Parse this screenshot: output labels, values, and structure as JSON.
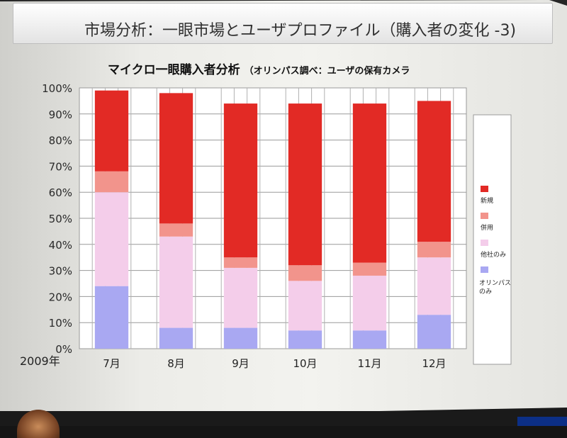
{
  "slide": {
    "title": "市場分析：一眼市場とユーザプロファイル（購入者の変化 -3)"
  },
  "chart_data": {
    "type": "bar",
    "stacked": true,
    "title": "マイクロ一眼購入者分析",
    "subtitle": "（オリンパス調べ：ユーザの保有カメラ",
    "year_label": "2009年",
    "categories": [
      "7月",
      "8月",
      "9月",
      "10月",
      "11月",
      "12月"
    ],
    "yticks": [
      "0%",
      "10%",
      "20%",
      "30%",
      "40%",
      "50%",
      "60%",
      "70%",
      "80%",
      "90%",
      "100%"
    ],
    "ylim": [
      0,
      100
    ],
    "grid": true,
    "legend_position": "right",
    "series": [
      {
        "name": "オリンパスのみ",
        "color": "#a9a8f2",
        "values": [
          24,
          8,
          8,
          7,
          7,
          13
        ]
      },
      {
        "name": "他社のみ",
        "color": "#f4cdea",
        "values": [
          36,
          35,
          23,
          19,
          21,
          22
        ]
      },
      {
        "name": "併用",
        "color": "#f2948c",
        "values": [
          8,
          5,
          4,
          6,
          5,
          6
        ]
      },
      {
        "name": "新規",
        "color": "#e22a25",
        "values": [
          31,
          50,
          59,
          62,
          61,
          54
        ]
      }
    ]
  }
}
